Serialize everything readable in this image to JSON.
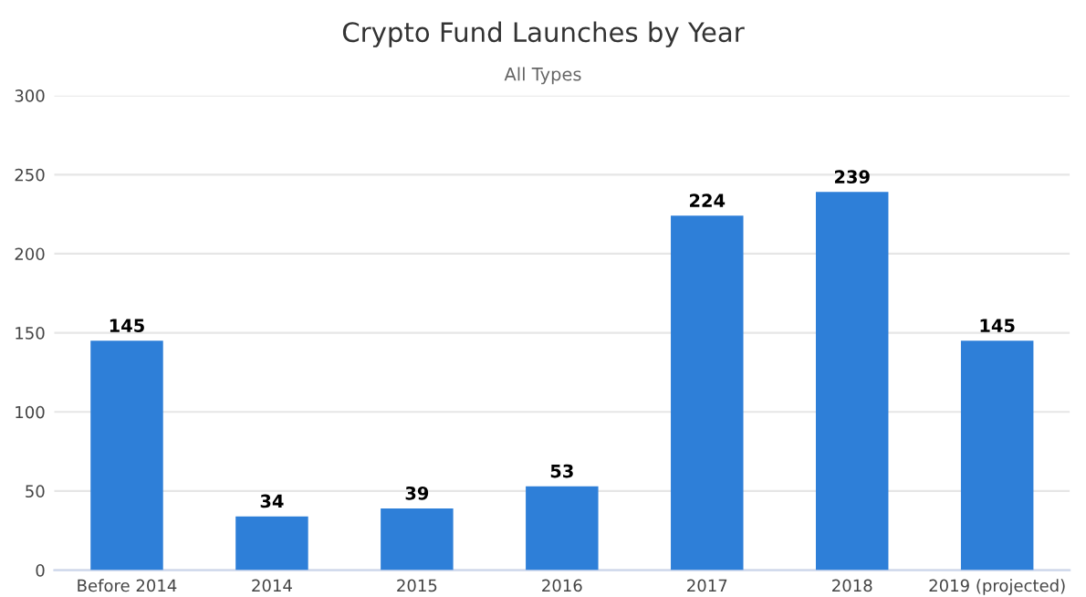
{
  "chart_data": {
    "type": "bar",
    "title": "Crypto Fund Launches by Year",
    "subtitle": "All Types",
    "categories": [
      "Before 2014",
      "2014",
      "2015",
      "2016",
      "2017",
      "2018",
      "2019 (projected)"
    ],
    "values": [
      145,
      34,
      39,
      53,
      224,
      239,
      145
    ],
    "color": "#2e7fd8",
    "ylim": [
      0,
      300
    ],
    "yticks": [
      0,
      50,
      100,
      150,
      200,
      250,
      300
    ],
    "grid": "y",
    "data_labels": true
  }
}
